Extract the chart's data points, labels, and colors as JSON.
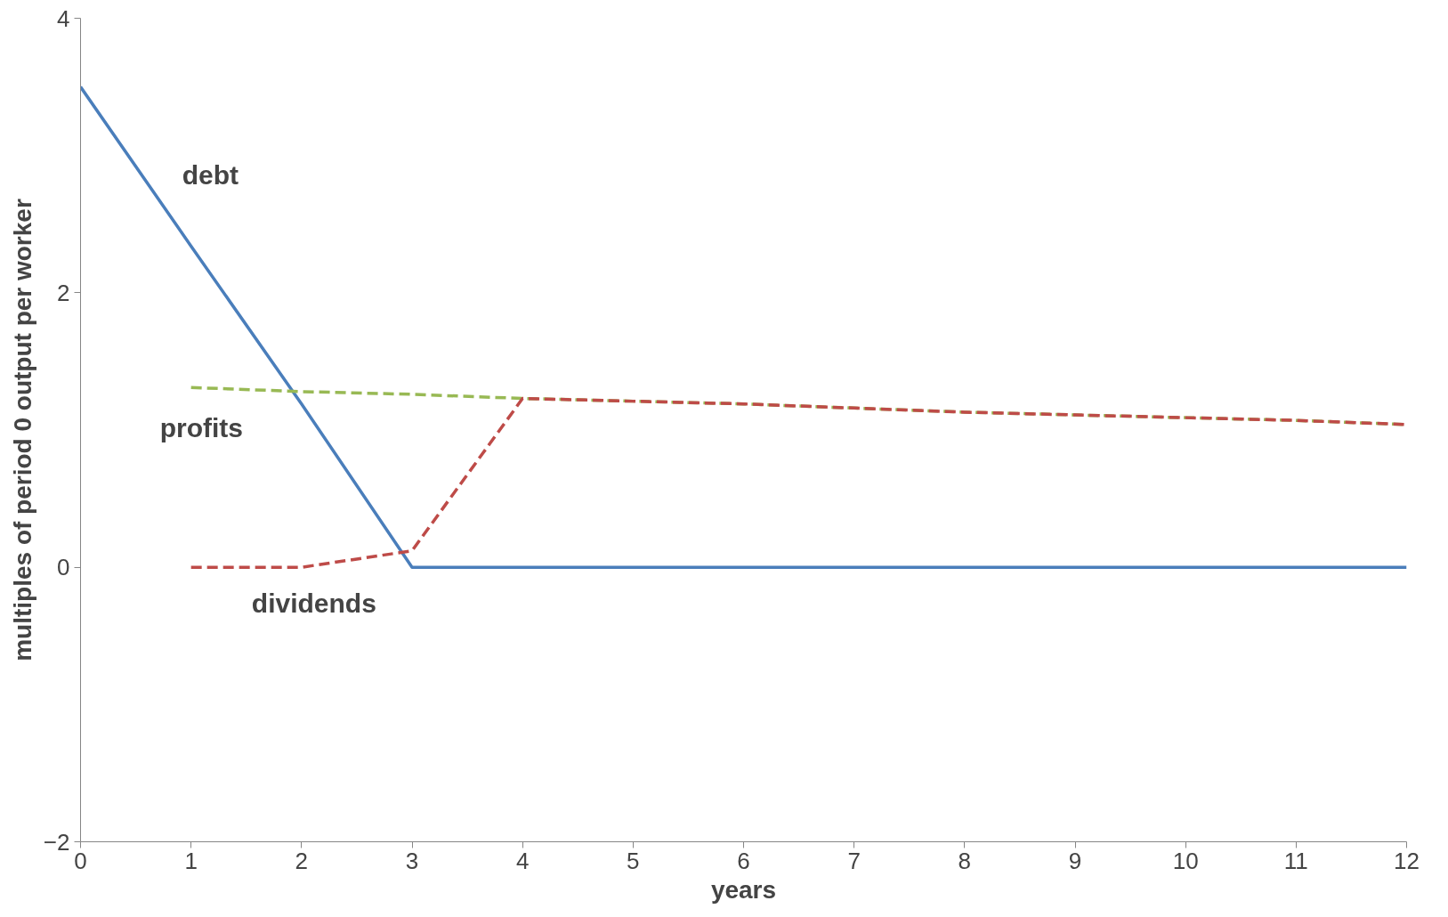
{
  "chart_data": {
    "type": "line",
    "xlabel": "years",
    "ylabel": "multiples of period 0 output per worker",
    "xlim": [
      0,
      12
    ],
    "ylim": [
      -2,
      4
    ],
    "xticks": [
      0,
      1,
      2,
      3,
      4,
      5,
      6,
      7,
      8,
      9,
      10,
      11,
      12
    ],
    "yticks": [
      -2,
      0,
      2,
      4
    ],
    "grid": false,
    "series": [
      {
        "name": "debt",
        "color": "#4a7ebb",
        "line_style": "solid",
        "x": [
          0,
          1,
          2,
          3,
          4,
          5,
          6,
          7,
          8,
          9,
          10,
          11,
          12
        ],
        "values": [
          3.5,
          2.34,
          1.19,
          0,
          0,
          0,
          0,
          0,
          0,
          0,
          0,
          0,
          0
        ]
      },
      {
        "name": "profits",
        "color": "#98b954",
        "line_style": "dashed",
        "x": [
          1,
          2,
          3,
          4,
          5,
          6,
          7,
          8,
          9,
          10,
          11,
          12
        ],
        "values": [
          1.31,
          1.28,
          1.26,
          1.23,
          1.21,
          1.19,
          1.16,
          1.13,
          1.11,
          1.09,
          1.07,
          1.04
        ]
      },
      {
        "name": "dividends",
        "color": "#be4b48",
        "line_style": "dashed",
        "x": [
          1,
          2,
          3,
          4,
          5,
          6,
          7,
          8,
          9,
          10,
          11,
          12
        ],
        "values": [
          0,
          0,
          0.12,
          1.23,
          1.21,
          1.19,
          1.16,
          1.13,
          1.11,
          1.09,
          1.07,
          1.04
        ]
      }
    ]
  }
}
